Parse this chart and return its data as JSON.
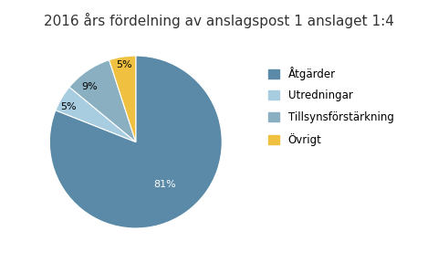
{
  "title": "2016 års fördelning av anslagspost 1 anslaget 1:4",
  "slices": [
    81,
    5,
    9,
    5
  ],
  "labels": [
    "Åtgärder",
    "Utredningar",
    "Tillsynsförstärkning",
    "Övrigt"
  ],
  "pct_labels": [
    "81%",
    "5%",
    "9%",
    "5%"
  ],
  "colors": [
    "#5b8aa8",
    "#a8cce0",
    "#8aafc0",
    "#f0c040"
  ],
  "startangle": 90,
  "background_color": "#ffffff",
  "title_fontsize": 11,
  "legend_fontsize": 8.5
}
